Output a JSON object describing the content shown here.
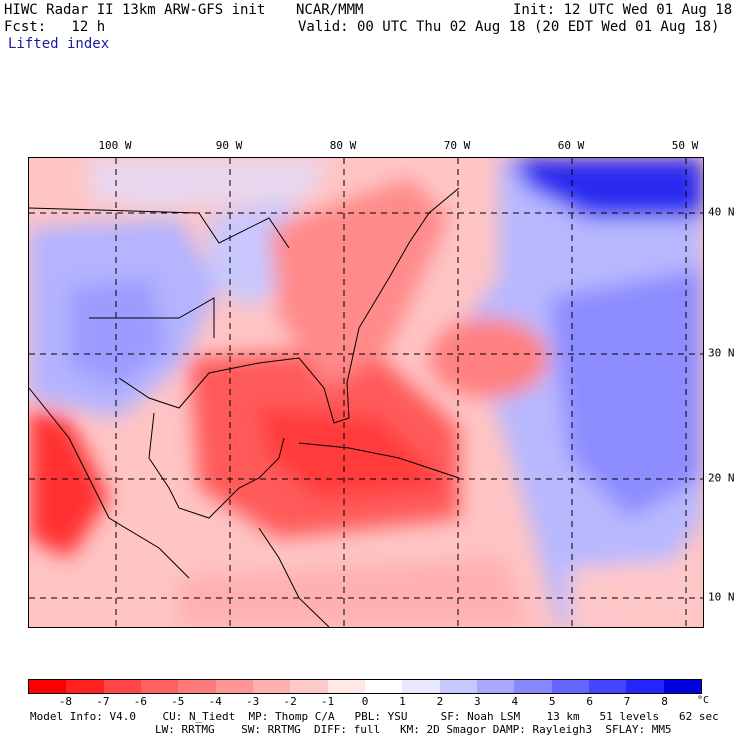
{
  "header": {
    "model_line": "HIWC Radar II 13km ARW-GFS init",
    "org": "NCAR/MMM",
    "init": "Init: 12 UTC Wed 01 Aug 18",
    "fcst": "Fcst:   12 h",
    "valid": "Valid: 00 UTC Thu 02 Aug 18 (20 EDT Wed 01 Aug 18)",
    "field": "Lifted index"
  },
  "map": {
    "lon_labels": [
      "100 W",
      "90 W",
      "80 W",
      "70 W",
      "60 W",
      "50 W"
    ],
    "lat_labels": [
      "40 N",
      "30 N",
      "20 N",
      "10 N"
    ]
  },
  "colorbar": {
    "ticks": [
      "-8",
      "-7",
      "-6",
      "-5",
      "-4",
      "-3",
      "-2",
      "-1",
      "0",
      "1",
      "2",
      "3",
      "4",
      "5",
      "6",
      "7",
      "8"
    ],
    "unit": "°C",
    "colors": [
      "#ff0000",
      "#ff2020",
      "#ff4545",
      "#ff6060",
      "#ff7a7a",
      "#ff9595",
      "#ffb0b0",
      "#ffcaca",
      "#ffe8e8",
      "#ffffff",
      "#e8e8ff",
      "#c8c8ff",
      "#a8a8ff",
      "#8888ff",
      "#6565ff",
      "#4545ff",
      "#2525ff",
      "#0000e0"
    ]
  },
  "footer": {
    "line1": "Model Info: V4.0    CU: N_Tiedt  MP: Thomp C/A   PBL: YSU     SF: Noah LSM    13 km   51 levels   62 sec",
    "line2": "LW: RRTMG    SW: RRTMG  DIFF: full   KM: 2D Smagor DAMP: Rayleigh3  SFLAY: MM5"
  }
}
